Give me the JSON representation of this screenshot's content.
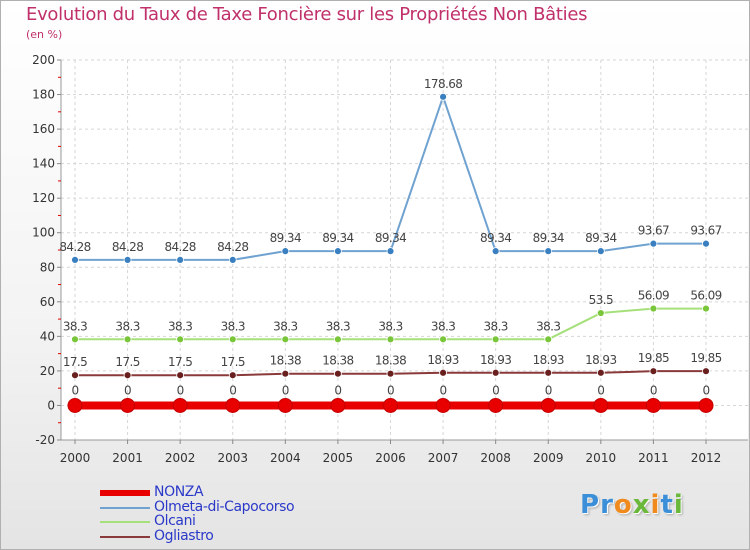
{
  "title": "Evolution du Taux de Taxe Foncière sur les Propriétés Non Bâties",
  "subtitle": "(en %)",
  "brand": {
    "letters": [
      "P",
      "r",
      "o",
      "x",
      "i",
      "t",
      "i"
    ],
    "colors": [
      "#3a8fd8",
      "#3a8fd8",
      "#f08a1c",
      "#6ab83a",
      "#f08a1c",
      "#3a8fd8",
      "#6ab83a"
    ]
  },
  "chart_data": {
    "type": "line",
    "title": "Evolution du Taux de Taxe Foncière sur les Propriétés Non Bâties",
    "ylabel": "(en %)",
    "xlabel": "",
    "ylim": [
      -20,
      200
    ],
    "yticks": [
      -20,
      0,
      20,
      40,
      60,
      80,
      100,
      120,
      140,
      160,
      180,
      200
    ],
    "categories": [
      "2000",
      "2001",
      "2002",
      "2003",
      "2004",
      "2005",
      "2006",
      "2007",
      "2008",
      "2009",
      "2010",
      "2011",
      "2012"
    ],
    "series": [
      {
        "name": "NONZA",
        "color": "#e80000",
        "values": [
          0,
          0,
          0,
          0,
          0,
          0,
          0,
          0,
          0,
          0,
          0,
          0,
          0
        ],
        "labels": [
          "0",
          "0",
          "0",
          "0",
          "0",
          "0",
          "0",
          "0",
          "0",
          "0",
          "0",
          "0",
          "0"
        ]
      },
      {
        "name": "Olmeta-di-Capocorso",
        "color": "#6fa2d0",
        "marker": "#3a7fbf",
        "values": [
          84.28,
          84.28,
          84.28,
          84.28,
          89.34,
          89.34,
          89.34,
          178.68,
          89.34,
          89.34,
          89.34,
          93.67,
          93.67
        ],
        "labels": [
          "84.28",
          "84.28",
          "84.28",
          "84.28",
          "89.34",
          "89.34",
          "89.34",
          "178.68",
          "89.34",
          "89.34",
          "89.34",
          "93.67",
          "93.67"
        ]
      },
      {
        "name": "Olcani",
        "color": "#a6e07a",
        "marker": "#79c63a",
        "values": [
          38.3,
          38.3,
          38.3,
          38.3,
          38.3,
          38.3,
          38.3,
          38.3,
          38.3,
          38.3,
          53.5,
          56.09,
          56.09
        ],
        "labels": [
          "38.3",
          "38.3",
          "38.3",
          "38.3",
          "38.3",
          "38.3",
          "38.3",
          "38.3",
          "38.3",
          "38.3",
          "53.5",
          "56.09",
          "56.09"
        ]
      },
      {
        "name": "Ogliastro",
        "color": "#8a3a3a",
        "marker": "#6a1f1f",
        "values": [
          17.5,
          17.5,
          17.5,
          17.5,
          18.38,
          18.38,
          18.38,
          18.93,
          18.93,
          18.93,
          18.93,
          19.85,
          19.85
        ],
        "labels": [
          "17.5",
          "17.5",
          "17.5",
          "17.5",
          "18.38",
          "18.38",
          "18.38",
          "18.93",
          "18.93",
          "18.93",
          "18.93",
          "19.85",
          "19.85"
        ]
      }
    ]
  }
}
